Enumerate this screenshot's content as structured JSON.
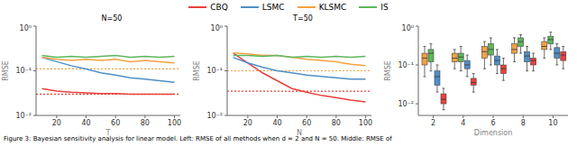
{
  "caption": "Figure 3: Bayesian sensitivity analysis for linear model. Left: RMSE of all methods when d = 2 and N = 50. Middle: RMSE of",
  "chart_data": [
    {
      "type": "line",
      "title": "N=50",
      "x_label": "T",
      "y_label": "RMSE",
      "log": "y",
      "grid": false,
      "legend": "top",
      "x": [
        10,
        20,
        30,
        40,
        50,
        60,
        70,
        80,
        90,
        100
      ],
      "xlim": [
        6,
        104
      ],
      "xticks": [
        20,
        40,
        60,
        80,
        100
      ],
      "ylim": [
        0.01,
        1
      ],
      "yticks": [
        {
          "value": 0.01,
          "label": "10⁻²"
        },
        {
          "value": 0.1,
          "label": "10⁻¹"
        },
        {
          "value": 1,
          "label": "10⁰"
        }
      ],
      "series": [
        {
          "name": "CBQ",
          "color": "#e8413c",
          "values": [
            0.04,
            0.035,
            0.033,
            0.032,
            0.031,
            0.031,
            0.03,
            0.03,
            0.03,
            0.03
          ],
          "baseline": 0.03
        },
        {
          "name": "LSMC",
          "color": "#4f8fc8",
          "values": [
            0.2,
            0.16,
            0.13,
            0.11,
            0.09,
            0.08,
            0.07,
            0.065,
            0.06,
            0.055
          ]
        },
        {
          "name": "KLSMC",
          "color": "#f5a142",
          "values": [
            0.2,
            0.18,
            0.17,
            0.18,
            0.17,
            0.18,
            0.16,
            0.17,
            0.16,
            0.15
          ],
          "baseline": 0.11
        },
        {
          "name": "IS",
          "color": "#5cb85c",
          "values": [
            0.22,
            0.2,
            0.21,
            0.2,
            0.21,
            0.22,
            0.2,
            0.21,
            0.2,
            0.21
          ]
        }
      ]
    },
    {
      "type": "line",
      "title": "T=50",
      "x_label": "N",
      "y_label": "RMSE",
      "log": "y",
      "grid": false,
      "x": [
        10,
        20,
        30,
        40,
        50,
        60,
        70,
        80,
        90,
        100
      ],
      "xlim": [
        6,
        104
      ],
      "xticks": [
        20,
        40,
        60,
        80,
        100
      ],
      "ylim": [
        0.01,
        1
      ],
      "yticks": [
        {
          "value": 0.01,
          "label": "10⁻²"
        },
        {
          "value": 0.1,
          "label": "10⁻¹"
        },
        {
          "value": 1,
          "label": "10⁰"
        }
      ],
      "series": [
        {
          "name": "CBQ",
          "color": "#e8413c",
          "values": [
            0.25,
            0.15,
            0.09,
            0.06,
            0.04,
            0.033,
            0.028,
            0.025,
            0.022,
            0.02
          ],
          "baseline": 0.035
        },
        {
          "name": "LSMC",
          "color": "#4f8fc8",
          "values": [
            0.2,
            0.15,
            0.12,
            0.1,
            0.09,
            0.08,
            0.075,
            0.07,
            0.065,
            0.065
          ]
        },
        {
          "name": "KLSMC",
          "color": "#f5a142",
          "values": [
            0.25,
            0.24,
            0.22,
            0.22,
            0.2,
            0.18,
            0.17,
            0.16,
            0.14,
            0.13
          ],
          "baseline": 0.1
        },
        {
          "name": "IS",
          "color": "#5cb85c",
          "values": [
            0.22,
            0.22,
            0.21,
            0.22,
            0.2,
            0.21,
            0.2,
            0.21,
            0.2,
            0.21
          ]
        }
      ]
    },
    {
      "type": "box",
      "x_label": "Dimension",
      "y_label": "RMSE",
      "log": "y",
      "grid": false,
      "categories": [
        "2",
        "4",
        "6",
        "8",
        "10"
      ],
      "ylim": [
        0.005,
        1
      ],
      "yticks": [
        {
          "value": 0.01,
          "label": "10⁻²"
        },
        {
          "value": 0.1,
          "label": "10⁻¹"
        },
        {
          "value": 1,
          "label": "10⁰"
        }
      ],
      "series": [
        {
          "name": "KLSMC",
          "color": "#f5a142",
          "min": [
            0.05,
            0.08,
            0.08,
            0.12,
            0.15
          ],
          "q1": [
            0.1,
            0.12,
            0.15,
            0.2,
            0.25
          ],
          "median": [
            0.15,
            0.15,
            0.22,
            0.25,
            0.3
          ],
          "q3": [
            0.2,
            0.2,
            0.3,
            0.35,
            0.4
          ],
          "max": [
            0.3,
            0.25,
            0.4,
            0.5,
            0.5
          ]
        },
        {
          "name": "IS",
          "color": "#5cb85c",
          "min": [
            0.07,
            0.07,
            0.1,
            0.2,
            0.25
          ],
          "q1": [
            0.12,
            0.12,
            0.18,
            0.3,
            0.35
          ],
          "median": [
            0.2,
            0.16,
            0.25,
            0.4,
            0.45
          ],
          "q3": [
            0.25,
            0.2,
            0.35,
            0.5,
            0.55
          ],
          "max": [
            0.35,
            0.3,
            0.5,
            0.6,
            0.7
          ]
        },
        {
          "name": "LSMC",
          "color": "#4f8fc8",
          "min": [
            0.02,
            0.05,
            0.06,
            0.07,
            0.1
          ],
          "q1": [
            0.03,
            0.08,
            0.1,
            0.12,
            0.15
          ],
          "median": [
            0.05,
            0.1,
            0.13,
            0.17,
            0.2
          ],
          "q3": [
            0.07,
            0.13,
            0.17,
            0.22,
            0.28
          ],
          "max": [
            0.1,
            0.18,
            0.25,
            0.3,
            0.35
          ]
        },
        {
          "name": "CBQ",
          "color": "#e8413c",
          "min": [
            0.007,
            0.02,
            0.04,
            0.07,
            0.08
          ],
          "q1": [
            0.01,
            0.03,
            0.06,
            0.1,
            0.13
          ],
          "median": [
            0.013,
            0.035,
            0.08,
            0.13,
            0.18
          ],
          "q3": [
            0.018,
            0.045,
            0.1,
            0.15,
            0.22
          ],
          "max": [
            0.025,
            0.06,
            0.15,
            0.2,
            0.3
          ]
        }
      ]
    }
  ]
}
